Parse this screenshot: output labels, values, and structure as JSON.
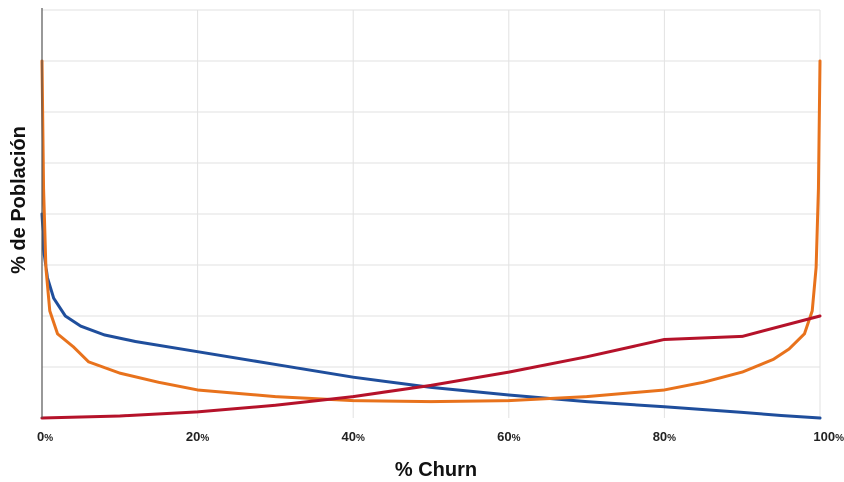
{
  "chart_data": {
    "type": "line",
    "xlabel": "% Churn",
    "ylabel": "% de Población",
    "xlim": [
      0,
      100
    ],
    "ylim": [
      0,
      8
    ],
    "x_ticks": [
      {
        "num": "0",
        "unit": "%"
      },
      {
        "num": "20",
        "unit": "%"
      },
      {
        "num": "40",
        "unit": "%"
      },
      {
        "num": "60",
        "unit": "%"
      },
      {
        "num": "80",
        "unit": "%"
      },
      {
        "num": "100",
        "unit": "%"
      }
    ],
    "grid": true,
    "series": [
      {
        "color": "#1f4e9c",
        "x": [
          0,
          0.3,
          0.7,
          1.5,
          3,
          5,
          8,
          12,
          20,
          30,
          40,
          50,
          60,
          70,
          80,
          90,
          95,
          100
        ],
        "y": [
          4.0,
          3.2,
          2.75,
          2.35,
          2.0,
          1.8,
          1.63,
          1.5,
          1.3,
          1.05,
          0.8,
          0.6,
          0.45,
          0.32,
          0.22,
          0.11,
          0.05,
          0.0
        ]
      },
      {
        "color": "#e8721c",
        "x": [
          0,
          0.2,
          0.5,
          1,
          2,
          4,
          6,
          10,
          15,
          20,
          30,
          40,
          50,
          60,
          70,
          80,
          85,
          90,
          94,
          96,
          98,
          99,
          99.5,
          99.8,
          100
        ],
        "y": [
          7.0,
          4.5,
          2.95,
          2.1,
          1.65,
          1.4,
          1.1,
          0.88,
          0.7,
          0.55,
          0.42,
          0.34,
          0.32,
          0.34,
          0.42,
          0.55,
          0.7,
          0.9,
          1.15,
          1.35,
          1.65,
          2.1,
          2.95,
          4.5,
          7.0
        ]
      },
      {
        "color": "#b5122a",
        "x": [
          0,
          10,
          20,
          30,
          40,
          50,
          60,
          70,
          80,
          90,
          100
        ],
        "y": [
          0.0,
          0.04,
          0.12,
          0.25,
          0.42,
          0.64,
          0.9,
          1.2,
          1.54,
          1.6,
          2.0
        ]
      }
    ]
  }
}
